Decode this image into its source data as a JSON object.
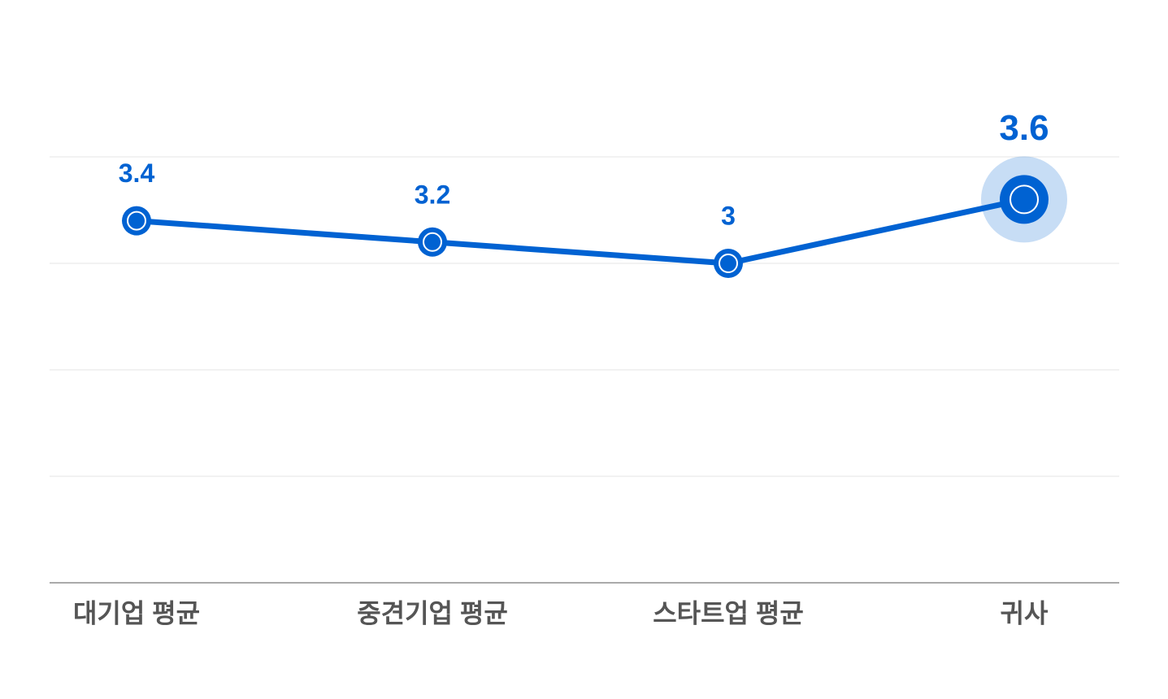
{
  "chart_data": {
    "type": "line",
    "categories": [
      "대기업 평균",
      "중견기업 평균",
      "스타트업 평균",
      "귀사"
    ],
    "values": [
      3.4,
      3.2,
      3,
      3.6
    ],
    "color": "#0062d2",
    "ylim": [
      0,
      4
    ],
    "yticks": [
      0,
      1,
      2,
      3,
      4
    ],
    "grid": true
  }
}
